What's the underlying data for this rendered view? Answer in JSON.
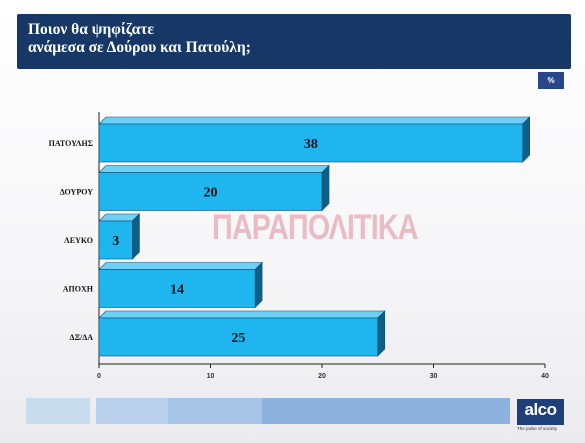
{
  "title": {
    "line1": "Ποιον θα ψηφίζατε",
    "line2": "ανάμεσα σε Δούρου και Πατούλη;"
  },
  "unit_badge": "%",
  "watermark": "ΠΑΡΑΠΟΛΙΤΙΚΑ",
  "logo": {
    "name": "alco",
    "tagline": "The pulse of society"
  },
  "colors": {
    "header": "#173866",
    "bar": "#1fb5ef",
    "bar_side": "#0e5f88",
    "bar_top": "#6fd0f5",
    "badge": "#27478a"
  },
  "footer_colors": [
    "#c9dcee",
    "#b9d0ec",
    "#a6c4e6",
    "#8db2dd"
  ],
  "chart_data": {
    "type": "bar",
    "orientation": "horizontal",
    "categories": [
      "ΠΑΤΟΥΛΗΣ",
      "ΔΟΥΡΟΥ",
      "ΛΕΥΚΟ",
      "ΑΠΟΧΗ",
      "ΔΞ/ΔΑ"
    ],
    "values": [
      38,
      20,
      3,
      14,
      25
    ],
    "xlim": [
      0,
      40
    ],
    "xticks": [
      0,
      10,
      20,
      30,
      40
    ],
    "grid": false,
    "legend": "none"
  }
}
